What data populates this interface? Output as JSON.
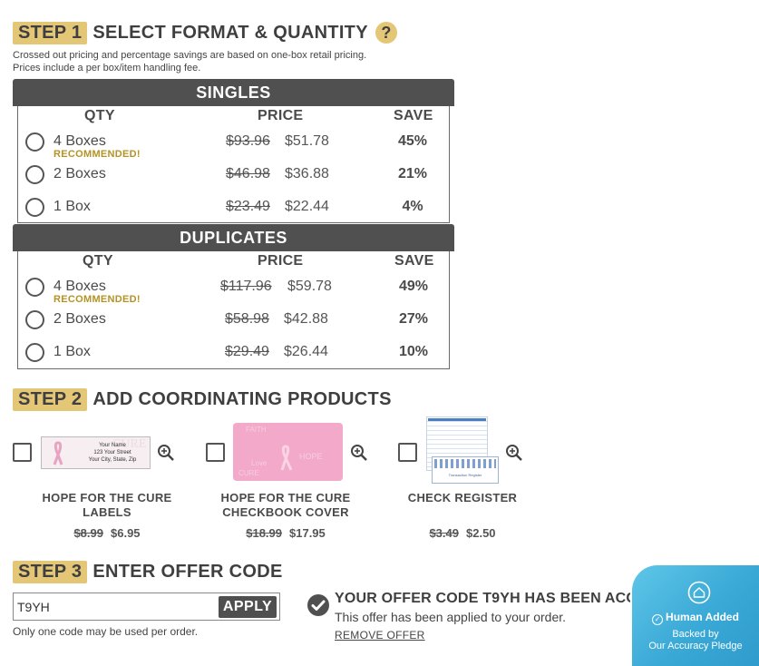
{
  "step1": {
    "badge": "STEP 1",
    "title": "SELECT FORMAT & QUANTITY",
    "help_icon": "question-mark-icon",
    "note_line1": "Crossed out pricing and percentage savings are based on one-box retail pricing.",
    "note_line2": "Prices include a per box/item handling fee."
  },
  "columns": {
    "qty": "QTY",
    "price": "PRICE",
    "save": "SAVE"
  },
  "singles": {
    "title": "SINGLES",
    "rows": [
      {
        "qty": "4 Boxes",
        "badge": "RECOMMENDED!",
        "old_price": "$93.96",
        "price": "$51.78",
        "save": "45%"
      },
      {
        "qty": "2 Boxes",
        "badge": "",
        "old_price": "$46.98",
        "price": "$36.88",
        "save": "21%"
      },
      {
        "qty": "1 Box",
        "badge": "",
        "old_price": "$23.49",
        "price": "$22.44",
        "save": "4%"
      }
    ]
  },
  "duplicates": {
    "title": "DUPLICATES",
    "rows": [
      {
        "qty": "4 Boxes",
        "badge": "RECOMMENDED!",
        "old_price": "$117.96",
        "price": "$59.78",
        "save": "49%"
      },
      {
        "qty": "2 Boxes",
        "badge": "",
        "old_price": "$58.98",
        "price": "$42.88",
        "save": "27%"
      },
      {
        "qty": "1 Box",
        "badge": "",
        "old_price": "$29.49",
        "price": "$26.44",
        "save": "10%"
      }
    ]
  },
  "step2": {
    "badge": "STEP 2",
    "title": "ADD COORDINATING PRODUCTS",
    "products": [
      {
        "name_line1": "HOPE FOR THE CURE",
        "name_line2": "LABELS",
        "old_price": "$8.99",
        "price": "$6.95",
        "label_text": [
          "Your Name",
          "123 Your Street",
          "Your City, State, Zip"
        ],
        "label_word": "CURE"
      },
      {
        "name_line1": "HOPE FOR THE CURE",
        "name_line2": "CHECKBOOK COVER",
        "old_price": "$18.99",
        "price": "$17.95",
        "cover_words": [
          "FAITH",
          "Love",
          "HOPE",
          "CURE"
        ]
      },
      {
        "name_line1": "CHECK REGISTER",
        "name_line2": "",
        "old_price": "$3.49",
        "price": "$2.50",
        "register_text": "Transaction Register"
      }
    ]
  },
  "step3": {
    "badge": "STEP 3",
    "title": "ENTER OFFER CODE",
    "input_value": "T9YH",
    "apply_label": "APPLY",
    "hint": "Only one code may be used per order.",
    "accepted_title": "YOUR OFFER CODE T9YH HAS BEEN ACCEPTED.",
    "accepted_sub": "This offer has been applied to your order.",
    "remove_label": "REMOVE OFFER"
  },
  "banner": {
    "title": "Human Added",
    "line1": "Backed by",
    "line2": "Our Accuracy Pledge"
  },
  "colors": {
    "gold": "#e4c677",
    "dark": "#505050",
    "recommended": "#b39325",
    "banner": "#3aa9d6"
  }
}
